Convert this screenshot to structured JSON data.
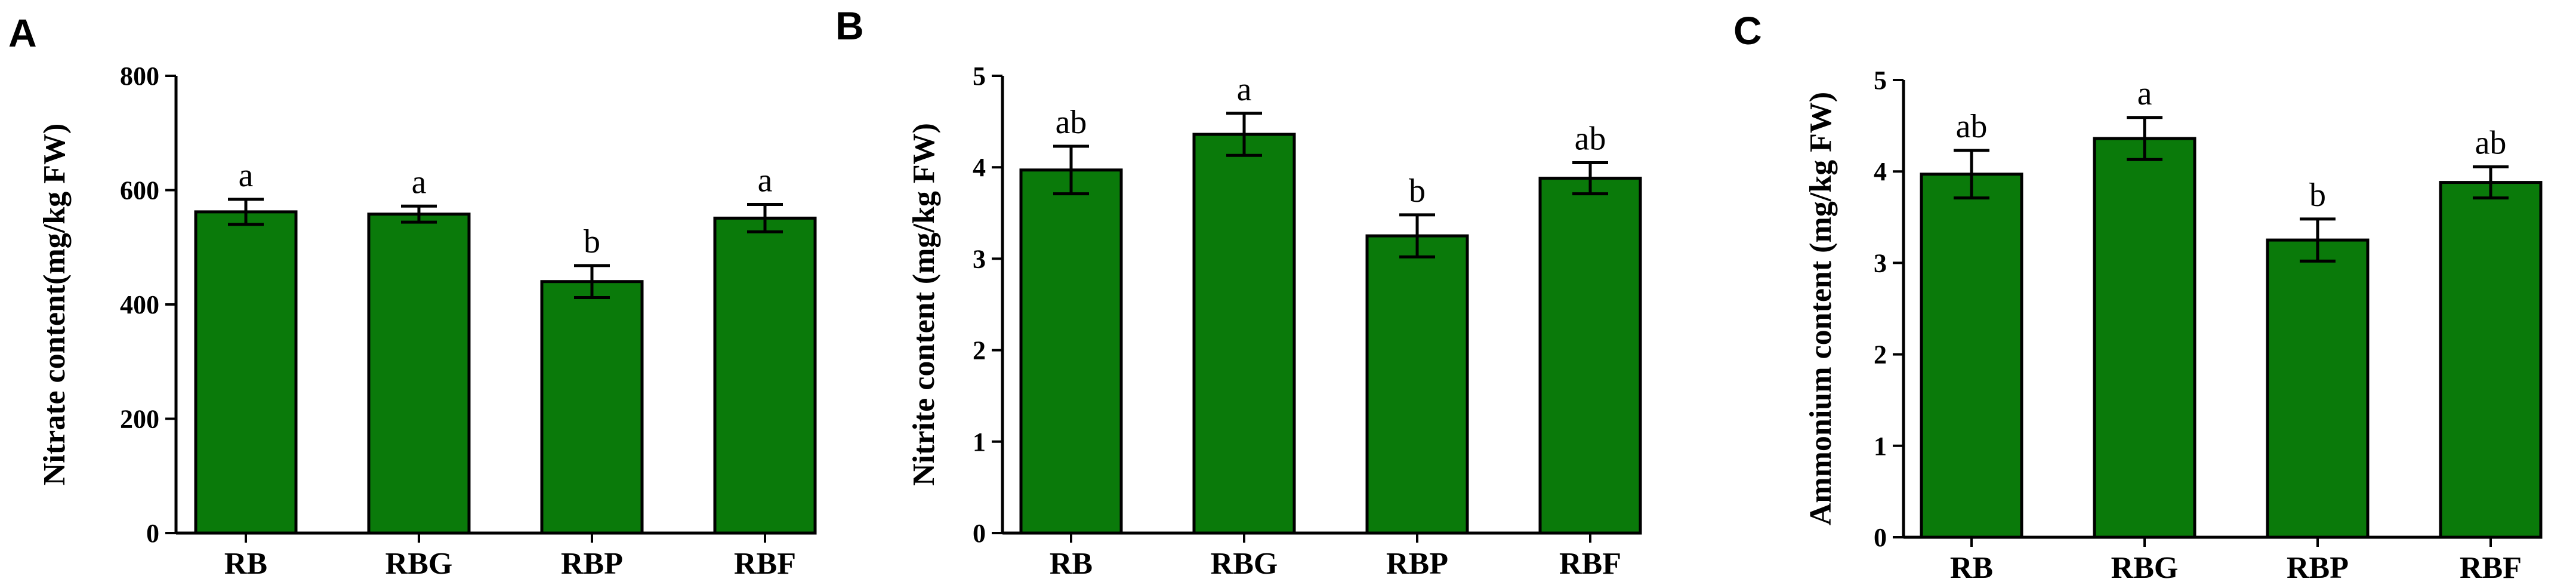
{
  "chart_data": [
    {
      "panel": "A",
      "type": "bar",
      "ylabel": "Nitrate content(mg/kg FW)",
      "categories": [
        "RB",
        "RBG",
        "RBP",
        "RBF"
      ],
      "values": [
        562,
        558,
        440,
        551
      ],
      "errors": [
        22,
        14,
        28,
        24
      ],
      "significance": [
        "a",
        "a",
        "b",
        "a"
      ],
      "ylim": [
        0,
        800
      ],
      "yticks": [
        0,
        200,
        400,
        600,
        800
      ],
      "bar_color": "#0a7a0a"
    },
    {
      "panel": "B",
      "type": "bar",
      "ylabel": "Nitrite content (mg/kg FW)",
      "categories": [
        "RB",
        "RBG",
        "RBP",
        "RBF"
      ],
      "values": [
        3.97,
        4.36,
        3.25,
        3.88
      ],
      "errors": [
        0.26,
        0.23,
        0.23,
        0.17
      ],
      "significance": [
        "ab",
        "a",
        "b",
        "ab"
      ],
      "ylim": [
        0,
        5
      ],
      "yticks": [
        0,
        1,
        2,
        3,
        4,
        5
      ],
      "bar_color": "#0a7a0a"
    },
    {
      "panel": "C",
      "type": "bar",
      "ylabel": "Ammonium content (mg/kg FW)",
      "categories": [
        "RB",
        "RBG",
        "RBP",
        "RBF"
      ],
      "values": [
        3.97,
        4.36,
        3.25,
        3.88
      ],
      "errors": [
        0.26,
        0.23,
        0.23,
        0.17
      ],
      "significance": [
        "ab",
        "a",
        "b",
        "ab"
      ],
      "ylim": [
        0,
        5
      ],
      "yticks": [
        0,
        1,
        2,
        3,
        4,
        5
      ],
      "bar_color": "#0a7a0a"
    }
  ]
}
